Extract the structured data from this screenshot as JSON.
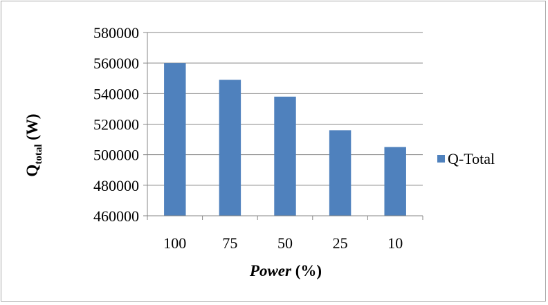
{
  "chart_data": {
    "type": "bar",
    "categories": [
      "100",
      "75",
      "50",
      "25",
      "10"
    ],
    "series": [
      {
        "name": "Q-Total",
        "values": [
          560000,
          549000,
          538000,
          516000,
          505000
        ],
        "color": "#4f81bd"
      }
    ],
    "ylim": [
      460000,
      580000
    ],
    "yticks": [
      "460000",
      "480000",
      "500000",
      "520000",
      "540000",
      "560000",
      "580000"
    ],
    "ylabel": {
      "main": "Q",
      "sub": "total",
      "rest": " (W)"
    },
    "xlabel": {
      "italic": "Power",
      "rest": " (%)"
    },
    "grid": true,
    "legend_position": "right"
  }
}
